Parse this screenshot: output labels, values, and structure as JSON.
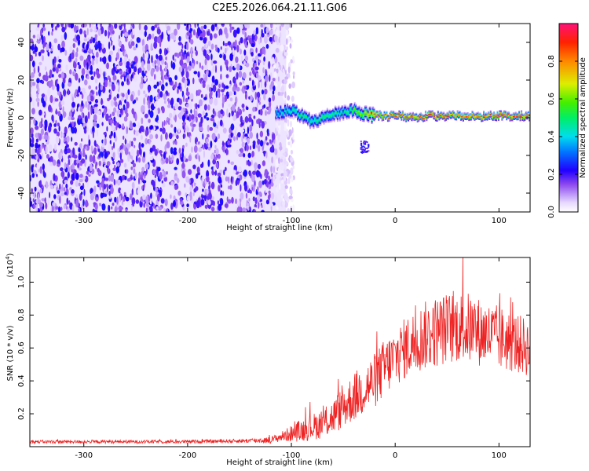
{
  "title": "C2E5.2026.064.21.11.G06",
  "chart_data": [
    {
      "type": "heatmap",
      "description": "Spectrogram of frequency vs height of straight line; noisy speckle for heights below about -110 km, a narrow ridge near 0 Hz above it",
      "xlabel": "Height of straight line (km)",
      "ylabel": "Frequency (Hz)",
      "xlim": [
        -352,
        130
      ],
      "ylim": [
        -50,
        50
      ],
      "xticks": [
        -300,
        -200,
        -100,
        0,
        100
      ],
      "xtick_labels": [
        "-300",
        "-200",
        "-100",
        "0",
        "100"
      ],
      "yticks": [
        -40,
        -20,
        0,
        20,
        40
      ],
      "ytick_labels": [
        "-40",
        "-20",
        "0",
        "20",
        "40"
      ],
      "noise_region_x": [
        -352,
        -105
      ],
      "ridge": {
        "x": [
          -115,
          -100,
          -90,
          -80,
          -70,
          -60,
          -50,
          -40,
          -30,
          -20,
          0,
          20,
          40,
          60,
          80,
          100,
          130
        ],
        "y": [
          2,
          4,
          1,
          -2,
          0,
          2,
          3,
          4,
          2,
          1,
          1,
          0.5,
          1,
          1,
          0.5,
          1,
          1
        ],
        "amplitude": [
          0.45,
          0.5,
          0.55,
          0.5,
          0.55,
          0.55,
          0.5,
          0.6,
          0.7,
          0.85,
          0.9,
          0.95,
          0.95,
          0.95,
          0.95,
          0.95,
          0.95
        ]
      },
      "secondary_blob": {
        "x": -30,
        "y": -15
      },
      "colorbar": {
        "label": "Normalized spectral amplitude",
        "range": [
          0,
          1
        ],
        "ticks": [
          0.0,
          0.2,
          0.4,
          0.6,
          0.8
        ],
        "tick_labels": [
          "0.0",
          "0.2",
          "0.4",
          "0.6",
          "0.8"
        ]
      }
    },
    {
      "type": "line",
      "description": "SNR vs height of straight line; near-flat low values up to about -110 km, rising to a broad maximum around 60-100 km",
      "xlabel": "Height of straight line (km)",
      "ylabel": "SNR (10 * v/v)",
      "multiplier_label": "(x10",
      "multiplier_exponent": "4",
      "xlim": [
        -352,
        130
      ],
      "ylim": [
        0,
        1.15
      ],
      "xticks": [
        -300,
        -200,
        -100,
        0,
        100
      ],
      "xtick_labels": [
        "-300",
        "-200",
        "-100",
        "0",
        "100"
      ],
      "yticks": [
        0.2,
        0.4,
        0.6,
        0.8,
        1.0
      ],
      "ytick_labels": [
        "0.2",
        "0.4",
        "0.6",
        "0.8",
        "1.0"
      ],
      "series": [
        {
          "name": "SNR",
          "color": "#ee2222",
          "x": [
            -352,
            -300,
            -250,
            -200,
            -150,
            -120,
            -110,
            -100,
            -90,
            -80,
            -70,
            -60,
            -50,
            -40,
            -30,
            -20,
            -10,
            0,
            10,
            20,
            30,
            40,
            50,
            60,
            70,
            80,
            90,
            100,
            110,
            120,
            130
          ],
          "y": [
            0.03,
            0.03,
            0.03,
            0.03,
            0.035,
            0.04,
            0.06,
            0.08,
            0.1,
            0.12,
            0.14,
            0.18,
            0.24,
            0.3,
            0.35,
            0.4,
            0.48,
            0.54,
            0.6,
            0.64,
            0.68,
            0.7,
            0.72,
            0.73,
            0.72,
            0.7,
            0.68,
            0.66,
            0.64,
            0.62,
            0.6
          ],
          "noise_amplitude": [
            0.01,
            0.01,
            0.01,
            0.01,
            0.012,
            0.02,
            0.03,
            0.05,
            0.07,
            0.08,
            0.09,
            0.11,
            0.13,
            0.15,
            0.16,
            0.17,
            0.18,
            0.18,
            0.19,
            0.2,
            0.21,
            0.22,
            0.22,
            0.22,
            0.22,
            0.21,
            0.2,
            0.2,
            0.19,
            0.18,
            0.18
          ]
        }
      ]
    }
  ]
}
